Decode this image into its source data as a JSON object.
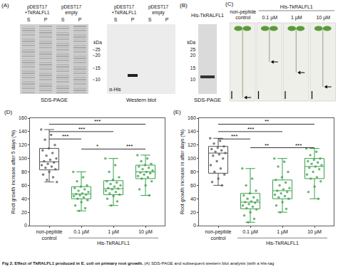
{
  "figure": {
    "A": {
      "panel_label": "(A)",
      "lanes": [
        {
          "label": "pDEST17 +TkRALFL1",
          "fractions": [
            "S",
            "P"
          ]
        },
        {
          "label": "pDEST17 empty",
          "fractions": [
            "S",
            "P"
          ]
        }
      ],
      "markers_unit": "kDa",
      "markers": [
        "25",
        "20",
        "15",
        "10"
      ],
      "left_caption": "SDS-PAGE",
      "right_caption": "Western blot",
      "antibody": "α-His"
    },
    "B": {
      "panel_label": "(B)",
      "header": "His-TkRALFL1",
      "markers_unit": "kDa",
      "markers": [
        "25",
        "20",
        "15",
        "10"
      ],
      "caption": "SDS-PAGE"
    },
    "C": {
      "panel_label": "(C)",
      "control": "non-peptide control",
      "group": "His-TkRALFL1",
      "concentrations": [
        "0.1 µM",
        "1 µM",
        "10 µM"
      ]
    }
  },
  "chart_data": [
    {
      "type": "box",
      "panel_label": "(D)",
      "ylabel": "Root growth increase after 5 days (%)",
      "categories": [
        "non-peptide control",
        "0.1 µM",
        "1 µM",
        "10 µM"
      ],
      "group_label": {
        "text": "His-TkRALFL1",
        "members": [
          "0.1 µM",
          "1 µM",
          "10 µM"
        ]
      },
      "ylim": [
        0,
        160
      ],
      "yticks": [
        0,
        20,
        40,
        60,
        80,
        100,
        120,
        140,
        160
      ],
      "grid": false,
      "groups": [
        {
          "category": "non-peptide control",
          "color": "#555555",
          "q1": 83,
          "median": 95,
          "q3": 115,
          "lowerfence": 65,
          "upperfence": 143,
          "points": [
            143,
            135,
            128,
            120,
            115,
            112,
            108,
            104,
            100,
            98,
            96,
            94,
            92,
            90,
            88,
            86,
            84,
            80,
            76,
            72,
            68,
            65
          ]
        },
        {
          "category": "0.1 µM",
          "color": "#3aa04a",
          "q1": 40,
          "median": 47,
          "q3": 58,
          "lowerfence": 22,
          "upperfence": 80,
          "points": [
            80,
            72,
            66,
            60,
            58,
            56,
            54,
            52,
            50,
            48,
            47,
            46,
            45,
            44,
            42,
            40,
            38,
            35,
            30,
            26,
            22
          ]
        },
        {
          "category": "1 µM",
          "color": "#3aa04a",
          "q1": 46,
          "median": 55,
          "q3": 67,
          "lowerfence": 30,
          "upperfence": 100,
          "points": [
            100,
            90,
            80,
            72,
            68,
            66,
            64,
            62,
            60,
            58,
            56,
            55,
            54,
            52,
            50,
            48,
            46,
            44,
            40,
            36,
            30
          ]
        },
        {
          "category": "10 µM",
          "color": "#3aa04a",
          "q1": 70,
          "median": 80,
          "q3": 90,
          "lowerfence": 45,
          "upperfence": 105,
          "points": [
            105,
            100,
            96,
            92,
            90,
            88,
            86,
            84,
            82,
            80,
            79,
            78,
            76,
            74,
            72,
            70,
            66,
            60,
            54,
            45
          ]
        }
      ],
      "significance": [
        {
          "from": "non-peptide control",
          "to": "10 µM",
          "label": "***",
          "y": 151
        },
        {
          "from": "non-peptide control",
          "to": "1 µM",
          "label": "***",
          "y": 140
        },
        {
          "from": "non-peptide control",
          "to": "0.1 µM",
          "label": "***",
          "y": 129
        },
        {
          "from": "0.1 µM",
          "to": "1 µM",
          "label": "*",
          "y": 114
        },
        {
          "from": "1 µM",
          "to": "10 µM",
          "label": "***",
          "y": 114
        }
      ]
    },
    {
      "type": "box",
      "panel_label": "(E)",
      "ylabel": "Root growth increase in after days (%)",
      "categories": [
        "non-peptide control",
        "0.1 µM",
        "1 µM",
        "10 µM"
      ],
      "group_label": {
        "text": "His-TkRALFL1",
        "members": [
          "0.1 µM",
          "1 µM",
          "10 µM"
        ]
      },
      "ylim": [
        0,
        160
      ],
      "yticks": [
        0,
        20,
        40,
        60,
        80,
        100,
        120,
        140,
        160
      ],
      "grid": false,
      "groups": [
        {
          "category": "non-peptide control",
          "color": "#555555",
          "q1": 78,
          "median": 108,
          "q3": 118,
          "lowerfence": 60,
          "upperfence": 130,
          "points": [
            130,
            126,
            122,
            118,
            116,
            114,
            112,
            110,
            108,
            106,
            104,
            100,
            96,
            90,
            85,
            80,
            76,
            70,
            65,
            60
          ]
        },
        {
          "category": "0.1 µM",
          "color": "#3aa04a",
          "q1": 25,
          "median": 35,
          "q3": 48,
          "lowerfence": 5,
          "upperfence": 85,
          "points": [
            85,
            70,
            60,
            52,
            48,
            45,
            42,
            40,
            38,
            36,
            35,
            34,
            32,
            30,
            28,
            26,
            24,
            20,
            15,
            10,
            5
          ]
        },
        {
          "category": "1 µM",
          "color": "#3aa04a",
          "q1": 40,
          "median": 52,
          "q3": 68,
          "lowerfence": 20,
          "upperfence": 100,
          "points": [
            100,
            95,
            88,
            80,
            72,
            68,
            64,
            60,
            56,
            54,
            52,
            50,
            48,
            46,
            44,
            42,
            40,
            35,
            30,
            25,
            20
          ]
        },
        {
          "category": "10 µM",
          "color": "#3aa04a",
          "q1": 70,
          "median": 88,
          "q3": 100,
          "lowerfence": 40,
          "upperfence": 115,
          "points": [
            115,
            110,
            105,
            100,
            98,
            96,
            94,
            92,
            90,
            88,
            86,
            84,
            80,
            76,
            72,
            70,
            66,
            58,
            50,
            40
          ]
        }
      ],
      "significance": [
        {
          "from": "non-peptide control",
          "to": "10 µM",
          "label": "**",
          "y": 151
        },
        {
          "from": "non-peptide control",
          "to": "1 µM",
          "label": "***",
          "y": 140
        },
        {
          "from": "non-peptide control",
          "to": "0.1 µM",
          "label": "***",
          "y": 129
        },
        {
          "from": "0.1 µM",
          "to": "1 µM",
          "label": "**",
          "y": 116
        },
        {
          "from": "1 µM",
          "to": "10 µM",
          "label": "***",
          "y": 116
        }
      ]
    }
  ],
  "caption": {
    "title": "Fig 2. Effect of TkRALFL1 produced in E. coli on primary root growth.",
    "text": "(A) SDS-PAGE and subsequent western blot analysis (with a His-tag"
  }
}
